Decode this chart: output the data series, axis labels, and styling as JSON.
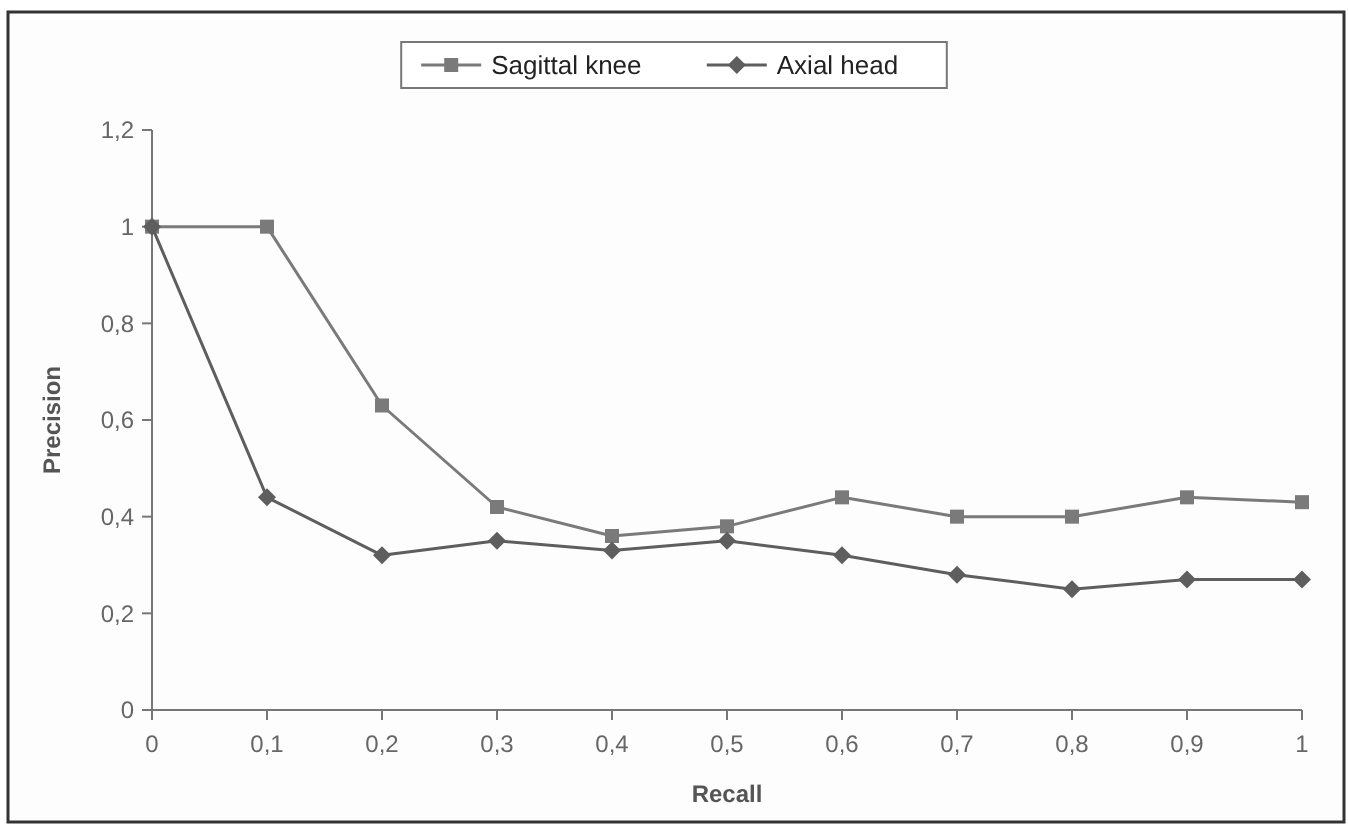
{
  "chart_data": {
    "type": "line",
    "xlabel": "Recall",
    "ylabel": "Precision",
    "x": [
      0,
      0.1,
      0.2,
      0.3,
      0.4,
      0.5,
      0.6,
      0.7,
      0.8,
      0.9,
      1
    ],
    "series": [
      {
        "name": "Sagittal knee",
        "color": "#7a7a7a",
        "marker": "square",
        "values": [
          1,
          1,
          0.63,
          0.42,
          0.36,
          0.38,
          0.44,
          0.4,
          0.4,
          0.44,
          0.43
        ]
      },
      {
        "name": "Axial head",
        "color": "#5e5e5e",
        "marker": "diamond",
        "values": [
          1,
          0.44,
          0.32,
          0.35,
          0.33,
          0.35,
          0.32,
          0.28,
          0.25,
          0.27,
          0.27
        ]
      }
    ],
    "xlim": [
      0,
      1
    ],
    "ylim": [
      0,
      1.2
    ],
    "xticks": [
      0,
      {
        "value": 0.1,
        "label": "0,1"
      },
      {
        "value": 0.2,
        "label": "0,2"
      },
      {
        "value": 0.3,
        "label": "0,3"
      },
      {
        "value": 0.4,
        "label": "0,4"
      },
      {
        "value": 0.5,
        "label": "0,5"
      },
      {
        "value": 0.6,
        "label": "0,6"
      },
      {
        "value": 0.7,
        "label": "0,7"
      },
      {
        "value": 0.8,
        "label": "0,8"
      },
      {
        "value": 0.9,
        "label": "0,9"
      },
      1
    ],
    "yticks": [
      0,
      {
        "value": 0.2,
        "label": "0,2"
      },
      {
        "value": 0.4,
        "label": "0,4"
      },
      {
        "value": 0.6,
        "label": "0,6"
      },
      {
        "value": 0.8,
        "label": "0,8"
      },
      1,
      {
        "value": 1.2,
        "label": "1,2"
      }
    ],
    "grid": false,
    "legend": "top",
    "line_style": "solid"
  }
}
